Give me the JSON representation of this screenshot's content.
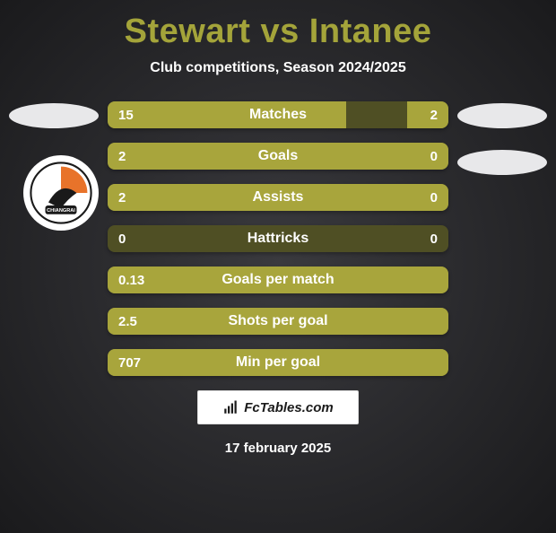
{
  "header": {
    "title": "Stewart vs Intanee",
    "subtitle": "Club competitions, Season 2024/2025",
    "title_color": "#a4a43a",
    "title_fontsize": 38,
    "subtitle_color": "#ffffff"
  },
  "bars": {
    "fill_color": "#a8a53c",
    "empty_color": "#4f4f24",
    "text_color": "#ffffff",
    "label_fontsize": 16,
    "value_fontsize": 15,
    "rows": [
      {
        "label": "Matches",
        "left": "15",
        "right": "2",
        "left_pct": 70,
        "right_pct": 12
      },
      {
        "label": "Goals",
        "left": "2",
        "right": "0",
        "left_pct": 100,
        "right_pct": 0
      },
      {
        "label": "Assists",
        "left": "2",
        "right": "0",
        "left_pct": 100,
        "right_pct": 0
      },
      {
        "label": "Hattricks",
        "left": "0",
        "right": "0",
        "left_pct": 0,
        "right_pct": 0
      },
      {
        "label": "Goals per match",
        "left": "0.13",
        "right": "",
        "left_pct": 100,
        "right_pct": 0
      },
      {
        "label": "Shots per goal",
        "left": "2.5",
        "right": "",
        "left_pct": 100,
        "right_pct": 0
      },
      {
        "label": "Min per goal",
        "left": "707",
        "right": "",
        "left_pct": 100,
        "right_pct": 0
      }
    ]
  },
  "footer": {
    "brand": "FcTables.com",
    "date": "17 february 2025"
  },
  "decor": {
    "ellipse_color": "#e8e8ea",
    "badge_bg": "#ffffff",
    "badge_accent": "#e8732a"
  }
}
